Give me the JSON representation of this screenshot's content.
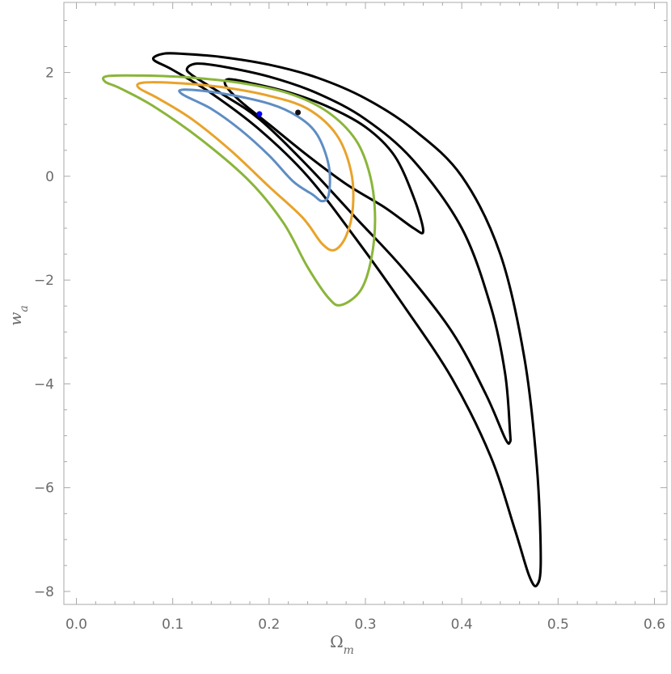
{
  "chart_data": {
    "type": "contour",
    "xlabel": "Ω",
    "xlabel_sub": "m",
    "ylabel": "w",
    "ylabel_sub": "a",
    "xlim": [
      -0.013,
      0.613
    ],
    "ylim": [
      -8.25,
      3.35
    ],
    "x_ticks": [
      0.0,
      0.1,
      0.2,
      0.3,
      0.4,
      0.5,
      0.6
    ],
    "x_tick_labels": [
      "0.0",
      "0.1",
      "0.2",
      "0.3",
      "0.4",
      "0.5",
      "0.6"
    ],
    "y_ticks": [
      -8,
      -6,
      -4,
      -2,
      0,
      2
    ],
    "y_tick_labels": [
      "−8",
      "−6",
      "−4",
      "−2",
      "0",
      "2"
    ],
    "grid": false,
    "frame": true,
    "colors": {
      "black_contours": "#000000",
      "blue_contour": "#5f8dc4",
      "orange_contour": "#e8a32a",
      "green_contour": "#8ab53a",
      "blue_point": "#0000ff",
      "black_point": "#111111",
      "frame": "#a8a8a8",
      "tick_text": "#6b6b6b"
    },
    "series": [
      {
        "color": "#000000",
        "closed": true,
        "points": [
          [
            0.08,
            2.25
          ],
          [
            0.09,
            2.36
          ],
          [
            0.11,
            2.36
          ],
          [
            0.15,
            2.3
          ],
          [
            0.2,
            2.15
          ],
          [
            0.25,
            1.9
          ],
          [
            0.3,
            1.5
          ],
          [
            0.35,
            0.9
          ],
          [
            0.4,
            0.0
          ],
          [
            0.44,
            -1.5
          ],
          [
            0.465,
            -3.5
          ],
          [
            0.478,
            -5.6
          ],
          [
            0.482,
            -7.4
          ],
          [
            0.478,
            -7.88
          ],
          [
            0.47,
            -7.7
          ],
          [
            0.455,
            -6.8
          ],
          [
            0.43,
            -5.4
          ],
          [
            0.39,
            -3.9
          ],
          [
            0.34,
            -2.5
          ],
          [
            0.29,
            -1.2
          ],
          [
            0.24,
            0.0
          ],
          [
            0.19,
            0.9
          ],
          [
            0.14,
            1.6
          ],
          [
            0.1,
            2.05
          ]
        ]
      },
      {
        "color": "#000000",
        "closed": true,
        "points": [
          [
            0.115,
            2.08
          ],
          [
            0.125,
            2.17
          ],
          [
            0.15,
            2.12
          ],
          [
            0.2,
            1.92
          ],
          [
            0.25,
            1.6
          ],
          [
            0.3,
            1.1
          ],
          [
            0.35,
            0.3
          ],
          [
            0.4,
            -1.0
          ],
          [
            0.43,
            -2.5
          ],
          [
            0.445,
            -3.8
          ],
          [
            0.45,
            -4.9
          ],
          [
            0.45,
            -5.12
          ],
          [
            0.445,
            -5.05
          ],
          [
            0.425,
            -4.2
          ],
          [
            0.39,
            -3.0
          ],
          [
            0.34,
            -1.8
          ],
          [
            0.29,
            -0.8
          ],
          [
            0.24,
            0.2
          ],
          [
            0.19,
            1.1
          ],
          [
            0.15,
            1.6
          ],
          [
            0.12,
            1.95
          ]
        ]
      },
      {
        "color": "#000000",
        "closed": true,
        "points": [
          [
            0.155,
            1.75
          ],
          [
            0.158,
            1.87
          ],
          [
            0.18,
            1.8
          ],
          [
            0.22,
            1.62
          ],
          [
            0.26,
            1.35
          ],
          [
            0.3,
            0.95
          ],
          [
            0.33,
            0.4
          ],
          [
            0.35,
            -0.4
          ],
          [
            0.36,
            -1.05
          ],
          [
            0.35,
            -1.0
          ],
          [
            0.32,
            -0.6
          ],
          [
            0.28,
            -0.15
          ],
          [
            0.24,
            0.4
          ],
          [
            0.2,
            1.0
          ],
          [
            0.17,
            1.45
          ]
        ]
      },
      {
        "color": "#5f8dc4",
        "closed": true,
        "points": [
          [
            0.11,
            1.58
          ],
          [
            0.112,
            1.67
          ],
          [
            0.15,
            1.6
          ],
          [
            0.2,
            1.4
          ],
          [
            0.23,
            1.15
          ],
          [
            0.25,
            0.8
          ],
          [
            0.262,
            0.2
          ],
          [
            0.262,
            -0.35
          ],
          [
            0.255,
            -0.48
          ],
          [
            0.245,
            -0.35
          ],
          [
            0.225,
            -0.1
          ],
          [
            0.2,
            0.4
          ],
          [
            0.17,
            0.9
          ],
          [
            0.14,
            1.3
          ]
        ]
      },
      {
        "color": "#e8a32a",
        "closed": true,
        "points": [
          [
            0.065,
            1.7
          ],
          [
            0.068,
            1.8
          ],
          [
            0.1,
            1.8
          ],
          [
            0.15,
            1.72
          ],
          [
            0.2,
            1.55
          ],
          [
            0.24,
            1.3
          ],
          [
            0.27,
            0.8
          ],
          [
            0.285,
            0.1
          ],
          [
            0.287,
            -0.6
          ],
          [
            0.28,
            -1.15
          ],
          [
            0.268,
            -1.42
          ],
          [
            0.255,
            -1.3
          ],
          [
            0.235,
            -0.8
          ],
          [
            0.2,
            -0.2
          ],
          [
            0.16,
            0.5
          ],
          [
            0.12,
            1.1
          ],
          [
            0.085,
            1.5
          ]
        ]
      },
      {
        "color": "#8ab53a",
        "closed": true,
        "points": [
          [
            0.03,
            1.82
          ],
          [
            0.032,
            1.93
          ],
          [
            0.07,
            1.94
          ],
          [
            0.12,
            1.9
          ],
          [
            0.17,
            1.8
          ],
          [
            0.22,
            1.6
          ],
          [
            0.26,
            1.25
          ],
          [
            0.29,
            0.7
          ],
          [
            0.305,
            0.0
          ],
          [
            0.31,
            -0.8
          ],
          [
            0.306,
            -1.6
          ],
          [
            0.295,
            -2.2
          ],
          [
            0.275,
            -2.48
          ],
          [
            0.262,
            -2.35
          ],
          [
            0.24,
            -1.75
          ],
          [
            0.215,
            -0.9
          ],
          [
            0.18,
            -0.1
          ],
          [
            0.13,
            0.7
          ],
          [
            0.08,
            1.35
          ],
          [
            0.045,
            1.7
          ]
        ]
      }
    ],
    "points": [
      {
        "x": 0.19,
        "y": 1.2,
        "color": "#0000ff"
      },
      {
        "x": 0.23,
        "y": 1.23,
        "color": "#111111"
      }
    ]
  }
}
